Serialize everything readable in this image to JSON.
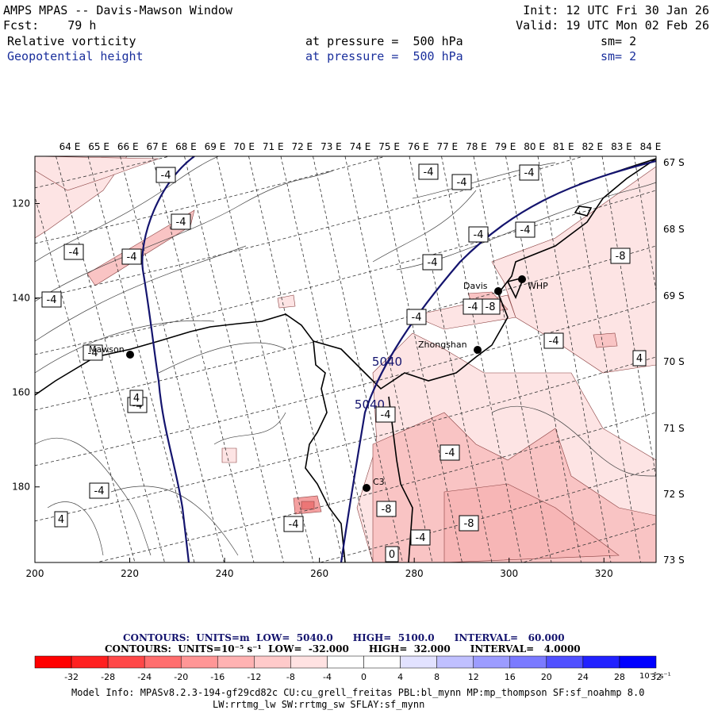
{
  "header": {
    "title": "AMPS MPAS -- Davis-Mawson Window",
    "forecast": "Fcst:    79 h",
    "init": "Init: 12 UTC Fri 30 Jan 26",
    "valid": "Valid: 19 UTC Mon 02 Feb 26",
    "field1": {
      "name": "Relative vorticity",
      "pressure": "at pressure =  500 hPa",
      "smooth": "sm= 2"
    },
    "field2": {
      "name": "Geopotential height",
      "pressure": "at pressure =  500 hPa",
      "smooth": "sm= 2"
    }
  },
  "contour_info": {
    "line1": "CONTOURS:  UNITS=m  LOW=  5040.0      HIGH=  5100.0      INTERVAL=   60.000",
    "line2": "CONTOURS:  UNITS=10⁻⁵ s⁻¹  LOW=  -32.000      HIGH=  32.000      INTERVAL=   4.0000"
  },
  "model_info": {
    "line1": "Model Info: MPASv8.2.3-194-gf29cd82c CU:cu_grell_freitas PBL:bl_mynn MP:mp_thompson SF:sf_noahmp 8.0",
    "line2": "LW:rrtmg_lw SW:rrtmg_sw SFLAY:sf_mynn"
  },
  "colorbar": {
    "colors": [
      "#ff0000",
      "#ff2020",
      "#ff4848",
      "#ff6e6e",
      "#ff9696",
      "#ffb2b2",
      "#ffcaca",
      "#ffe2e2",
      "#ffffff",
      "#ffffff",
      "#e2e2ff",
      "#c0c0ff",
      "#9c9cff",
      "#7a7aff",
      "#5050ff",
      "#2222ff",
      "#0000ff"
    ],
    "labels": [
      "-32",
      "-28",
      "-24",
      "-20",
      "-16",
      "-12",
      "-8",
      "-4",
      "0",
      "4",
      "8",
      "12",
      "16",
      "20",
      "24",
      "28",
      "32"
    ],
    "units": "10⁻⁵ s⁻¹"
  },
  "chart_data": {
    "type": "heatmap",
    "title": "AMPS MPAS -- Davis-Mawson Window",
    "xlabel": "",
    "ylabel": "",
    "x_ticks": [
      200,
      220,
      240,
      260,
      280,
      300,
      320
    ],
    "y_ticks": [
      120,
      140,
      160,
      180
    ],
    "xlim": [
      200,
      331
    ],
    "ylim": [
      196,
      110
    ],
    "longitude_labels": [
      "64 E",
      "65 E",
      "66 E",
      "67 E",
      "68 E",
      "69 E",
      "70 E",
      "71 E",
      "72 E",
      "73 E",
      "74 E",
      "75 E",
      "76 E",
      "77 E",
      "78 E",
      "79 E",
      "80 E",
      "81 E",
      "82 E",
      "83 E",
      "84 E"
    ],
    "latitude_labels": [
      "67 S",
      "68 S",
      "69 S",
      "70 S",
      "71 S",
      "72 S",
      "73 S"
    ],
    "series": [
      {
        "name": "Geopotential height (m)",
        "contour_labels": [
          "5040",
          "5040"
        ]
      },
      {
        "name": "Relative vorticity (10^-5 s^-1)",
        "contour_labels": [
          "-4",
          "-4",
          "-4",
          "-4",
          "-4",
          "-8",
          "-4",
          "-4",
          "-4",
          "-4",
          "-4",
          "-4",
          "-8",
          "-4",
          "-4",
          "-4",
          "-4",
          "4",
          "-4",
          "-4",
          "-4",
          "4",
          "4",
          "-4",
          "-8",
          "-4",
          "-8",
          "-4",
          "0"
        ]
      }
    ],
    "stations": [
      {
        "name": "Mawson"
      },
      {
        "name": "Davis"
      },
      {
        "name": "WHP"
      },
      {
        "name": "Zhongshan"
      },
      {
        "name": "C3"
      }
    ]
  }
}
